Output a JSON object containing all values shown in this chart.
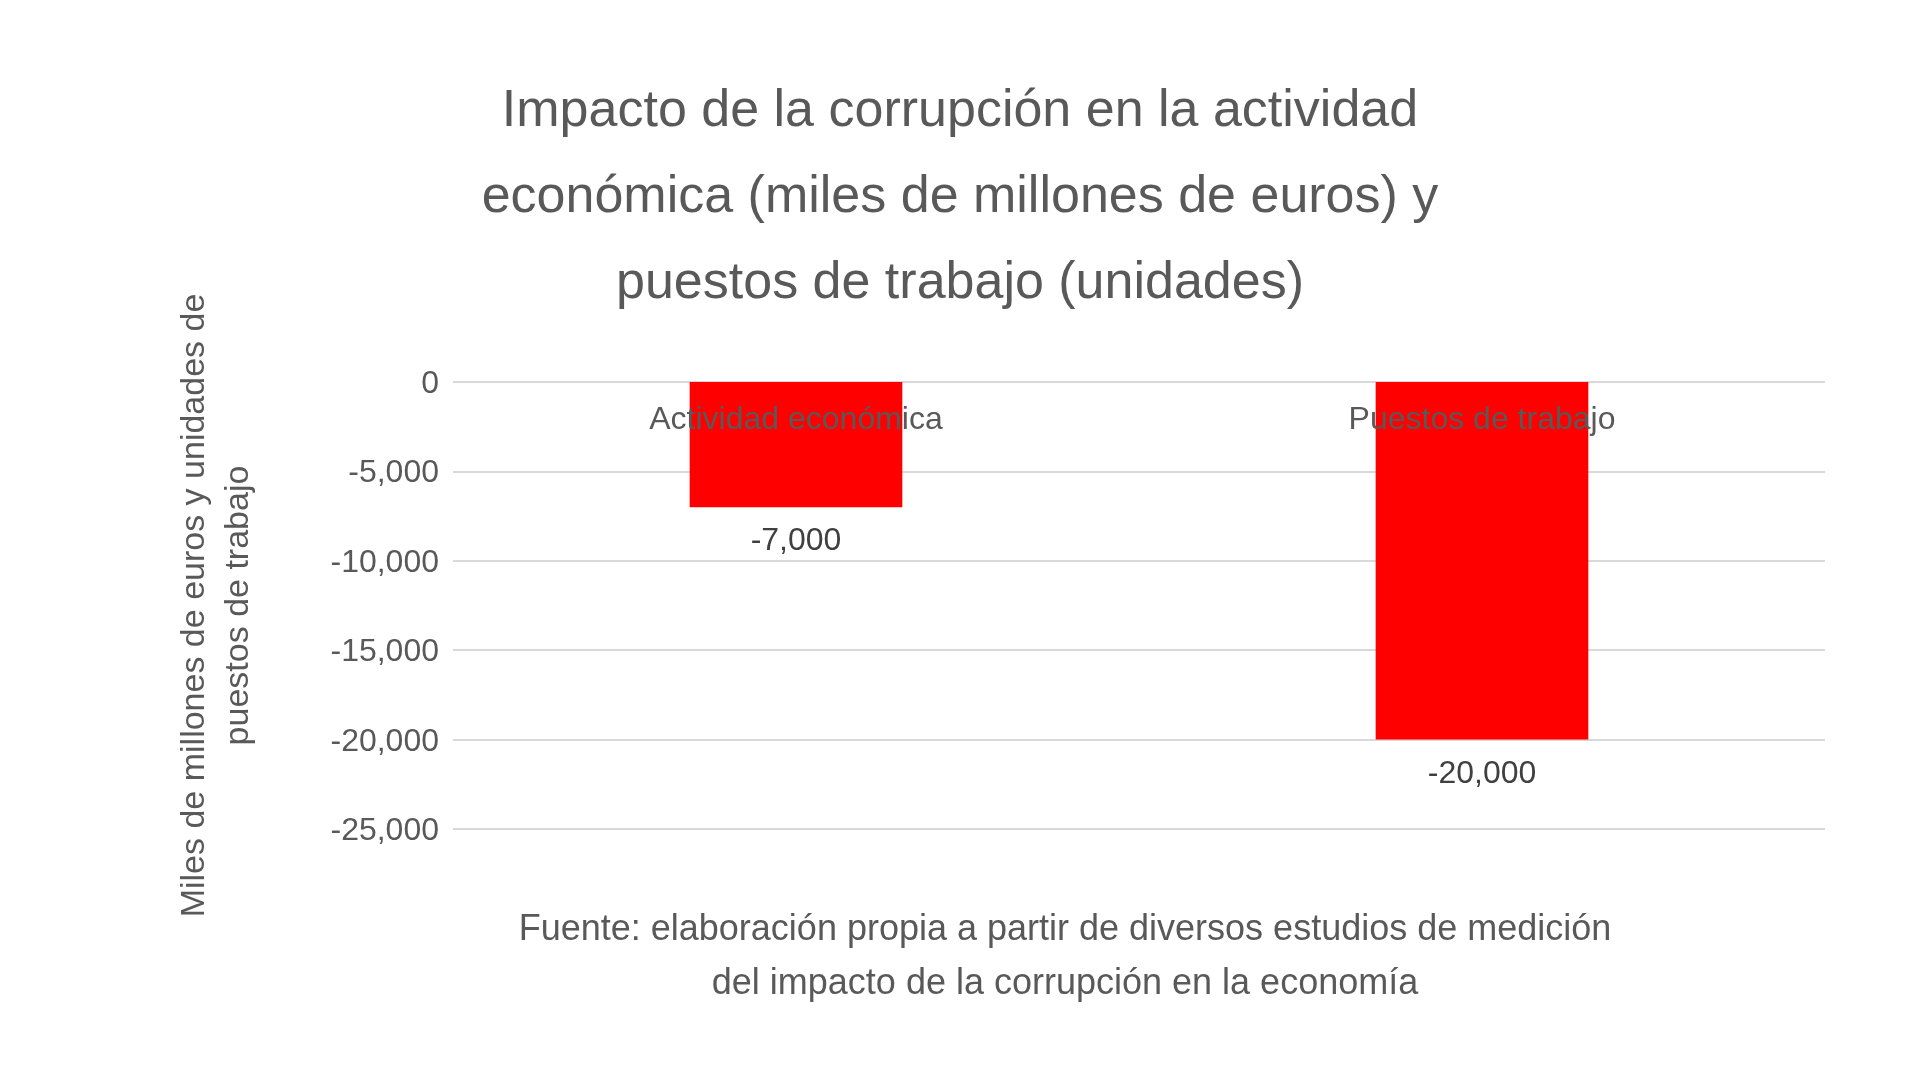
{
  "chart_data": {
    "type": "bar",
    "title": "Impacto de la corrupción en la actividad\neconómica (miles de millones de euros) y\npuestos de trabajo (unidades)",
    "ylabel": "Miles de millones de euros y unidades de\npuestos de trabajo",
    "categories": [
      "Actividad económica",
      "Puestos de trabajo"
    ],
    "values": [
      -7000,
      -20000
    ],
    "color": "#ff0000",
    "value_labels": [
      "-7,000",
      "-20,000"
    ],
    "ylim": [
      -25000,
      0
    ],
    "yticks": [
      {
        "value": 0,
        "label": "0"
      },
      {
        "value": -5000,
        "label": "-5,000"
      },
      {
        "value": -10000,
        "label": "-10,000"
      },
      {
        "value": -15000,
        "label": "-15,000"
      },
      {
        "value": -20000,
        "label": "-20,000"
      },
      {
        "value": -25000,
        "label": "-25,000"
      }
    ],
    "grid": "y",
    "annotations": [
      "Fuente: elaboración propia a partir de diversos estudios de medición\ndel impacto de la corrupción en la economía"
    ]
  }
}
